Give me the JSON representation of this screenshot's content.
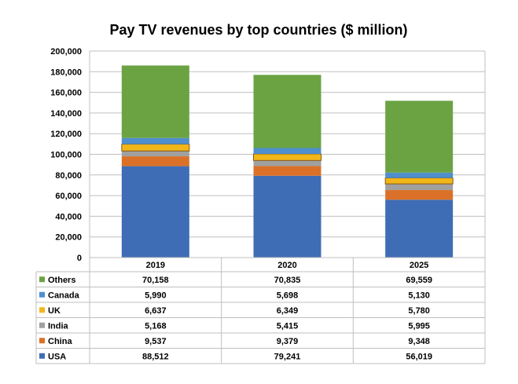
{
  "chart_data": {
    "type": "bar",
    "stacked": true,
    "title": "Pay TV revenues by top countries ($ million)",
    "categories": [
      "2019",
      "2020",
      "2025"
    ],
    "series": [
      {
        "name": "USA",
        "values": [
          88512,
          79241,
          56019
        ],
        "color": "#3F6DB5"
      },
      {
        "name": "China",
        "values": [
          9537,
          9379,
          9348
        ],
        "color": "#DB7128"
      },
      {
        "name": "India",
        "values": [
          5168,
          5415,
          5995
        ],
        "color": "#A0A0A0"
      },
      {
        "name": "UK",
        "values": [
          6637,
          6349,
          5780
        ],
        "color": "#F2B619"
      },
      {
        "name": "Canada",
        "values": [
          5990,
          5698,
          5130
        ],
        "color": "#4F8FCE"
      },
      {
        "name": "Others",
        "values": [
          70158,
          70835,
          69559
        ],
        "color": "#6BA343"
      }
    ],
    "table_values": [
      [
        "70,158",
        "70,835",
        "69,559"
      ],
      [
        "5,990",
        "5,698",
        "5,130"
      ],
      [
        "6,637",
        "6,349",
        "5,780"
      ],
      [
        "5,168",
        "5,415",
        "5,995"
      ],
      [
        "9,537",
        "9,379",
        "9,348"
      ],
      [
        "88,512",
        "79,241",
        "56,019"
      ]
    ],
    "table_order": [
      "Others",
      "Canada",
      "UK",
      "India",
      "China",
      "USA"
    ],
    "ylim": [
      0,
      200000
    ],
    "yticks": [
      0,
      20000,
      40000,
      60000,
      80000,
      100000,
      120000,
      140000,
      160000,
      180000,
      200000
    ],
    "ytick_labels": [
      "0",
      "20,000",
      "40,000",
      "60,000",
      "80,000",
      "100,000",
      "120,000",
      "140,000",
      "160,000",
      "180,000",
      "200,000"
    ],
    "grid": true,
    "legend": "data table keys (left of table)"
  }
}
